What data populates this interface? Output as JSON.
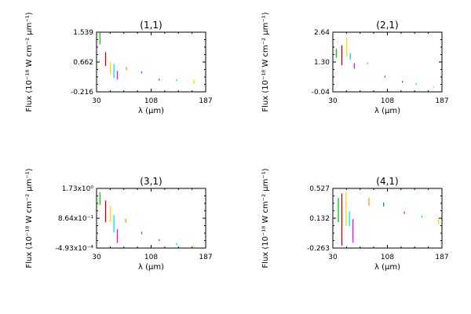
{
  "chart_data": [
    {
      "type": "errorbar",
      "title": "(1,1)",
      "xlabel": "λ (μm)",
      "ylabel": "Flux (10⁻¹⁸ W cm⁻² μm⁻¹)",
      "xlim": [
        30,
        187
      ],
      "ylim": [
        -0.216,
        1.539
      ],
      "xticks": [
        "30",
        "108",
        "187"
      ],
      "yticks": [
        "-0.216",
        "0.662",
        "1.539"
      ],
      "points": [
        {
          "x": 35,
          "ylo": 1.18,
          "yhi": 1.52,
          "color": "#00cc00"
        },
        {
          "x": 43,
          "ylo": 0.55,
          "yhi": 0.95,
          "color": "#cc0000"
        },
        {
          "x": 50,
          "ylo": 0.3,
          "yhi": 0.66,
          "color": "#ffd700"
        },
        {
          "x": 55,
          "ylo": 0.2,
          "yhi": 0.6,
          "color": "#00e5ee"
        },
        {
          "x": 60,
          "ylo": 0.15,
          "yhi": 0.4,
          "color": "#ff00ff"
        },
        {
          "x": 73,
          "ylo": 0.42,
          "yhi": 0.52,
          "color": "#ff9900"
        },
        {
          "x": 95,
          "ylo": 0.34,
          "yhi": 0.37,
          "color": "#0077ff"
        },
        {
          "x": 120,
          "ylo": 0.13,
          "yhi": 0.16,
          "color": "#ff00ff"
        },
        {
          "x": 145,
          "ylo": 0.11,
          "yhi": 0.14,
          "color": "#00e5ee"
        },
        {
          "x": 170,
          "ylo": 0.02,
          "yhi": 0.14,
          "color": "#ffd700"
        }
      ]
    },
    {
      "type": "errorbar",
      "title": "(2,1)",
      "xlabel": "λ (μm)",
      "ylabel": "Flux (10⁻¹⁸ W cm⁻² μm⁻¹)",
      "xlim": [
        30,
        187
      ],
      "ylim": [
        -0.04,
        2.64
      ],
      "xticks": [
        "30",
        "108",
        "187"
      ],
      "yticks": [
        "-0.04",
        "1.30",
        "2.64"
      ],
      "points": [
        {
          "x": 35,
          "ylo": 1.5,
          "yhi": 1.9,
          "color": "#00cc00"
        },
        {
          "x": 43,
          "ylo": 1.15,
          "yhi": 2.05,
          "color": "#cc0000"
        },
        {
          "x": 50,
          "ylo": 1.55,
          "yhi": 2.4,
          "color": "#ffd700"
        },
        {
          "x": 55,
          "ylo": 1.4,
          "yhi": 1.7,
          "color": "#00e5ee"
        },
        {
          "x": 61,
          "ylo": 1.0,
          "yhi": 1.25,
          "color": "#ff00ff"
        },
        {
          "x": 80,
          "ylo": 1.2,
          "yhi": 1.28,
          "color": "#ff9900"
        },
        {
          "x": 105,
          "ylo": 0.62,
          "yhi": 0.66,
          "color": "#0077ff"
        },
        {
          "x": 130,
          "ylo": 0.4,
          "yhi": 0.43,
          "color": "#ff00ff"
        },
        {
          "x": 150,
          "ylo": 0.3,
          "yhi": 0.33,
          "color": "#00e5ee"
        },
        {
          "x": 175,
          "ylo": 0.16,
          "yhi": 0.19,
          "color": "#ffd700"
        }
      ]
    },
    {
      "type": "errorbar",
      "title": "(3,1)",
      "xlabel": "λ (μm)",
      "ylabel": "Flux (10⁻¹⁸ W cm⁻² μm⁻¹)",
      "xlim": [
        30,
        187
      ],
      "ylim": [
        -0.000493,
        1.73
      ],
      "xticks": [
        "30",
        "108",
        "187"
      ],
      "yticks": [
        "-4.93x10⁻⁴",
        "8.64x10⁻¹",
        "1.73x10⁰"
      ],
      "points": [
        {
          "x": 35,
          "ylo": 1.25,
          "yhi": 1.62,
          "color": "#00cc00"
        },
        {
          "x": 43,
          "ylo": 0.75,
          "yhi": 1.38,
          "color": "#cc0000"
        },
        {
          "x": 50,
          "ylo": 0.75,
          "yhi": 1.22,
          "color": "#ffd700"
        },
        {
          "x": 55,
          "ylo": 0.45,
          "yhi": 0.95,
          "color": "#00e5ee"
        },
        {
          "x": 60,
          "ylo": 0.15,
          "yhi": 0.55,
          "color": "#ff00ff"
        },
        {
          "x": 72,
          "ylo": 0.72,
          "yhi": 0.85,
          "color": "#ff9900"
        },
        {
          "x": 95,
          "ylo": 0.4,
          "yhi": 0.47,
          "color": "#0077ff"
        },
        {
          "x": 120,
          "ylo": 0.21,
          "yhi": 0.25,
          "color": "#ff00ff"
        },
        {
          "x": 145,
          "ylo": 0.1,
          "yhi": 0.13,
          "color": "#00e5ee"
        },
        {
          "x": 170,
          "ylo": 0.02,
          "yhi": 0.07,
          "color": "#ffd700"
        }
      ]
    },
    {
      "type": "errorbar",
      "title": "(4,1)",
      "xlabel": "λ (μm)",
      "ylabel": "Flux (10⁻¹⁸ W cm⁻² μm⁻¹)",
      "xlim": [
        30,
        187
      ],
      "ylim": [
        -0.263,
        0.527
      ],
      "xticks": [
        "30",
        "108",
        "187"
      ],
      "yticks": [
        "-0.263",
        "0.132",
        "0.527"
      ],
      "points": [
        {
          "x": 38,
          "ylo": 0.08,
          "yhi": 0.4,
          "color": "#00cc00"
        },
        {
          "x": 43,
          "ylo": -0.23,
          "yhi": 0.46,
          "color": "#cc0000"
        },
        {
          "x": 49,
          "ylo": 0.03,
          "yhi": 0.48,
          "color": "#ffd700"
        },
        {
          "x": 54,
          "ylo": 0.03,
          "yhi": 0.22,
          "color": "#00e5ee"
        },
        {
          "x": 59,
          "ylo": -0.19,
          "yhi": 0.12,
          "color": "#ff00ff"
        },
        {
          "x": 82,
          "ylo": 0.3,
          "yhi": 0.4,
          "color": "#ff9900"
        },
        {
          "x": 103,
          "ylo": 0.29,
          "yhi": 0.34,
          "color": "#0077ff"
        },
        {
          "x": 133,
          "ylo": 0.19,
          "yhi": 0.22,
          "color": "#ff00ff"
        },
        {
          "x": 158,
          "ylo": 0.14,
          "yhi": 0.17,
          "color": "#00e5ee"
        },
        {
          "x": 182,
          "ylo": 0.05,
          "yhi": 0.13,
          "color": "#ffd700"
        }
      ]
    }
  ]
}
